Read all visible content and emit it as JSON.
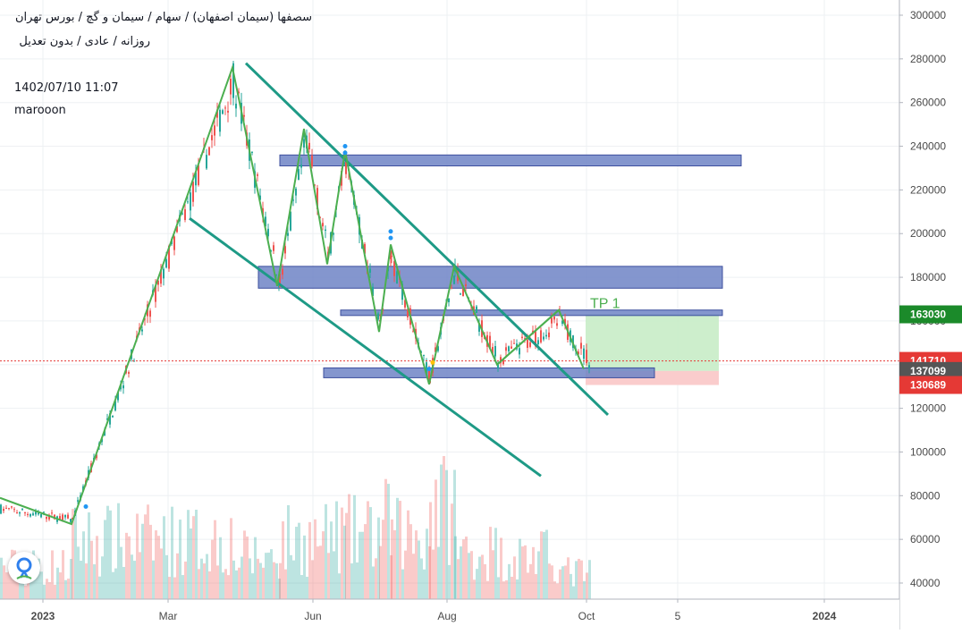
{
  "header": {
    "title": "سصفها (سیمان اصفهان) / سهام / سیمان و گچ / بورس تهران",
    "subtitle": "روزانه / عادی / بدون تعدیل",
    "datetime": "1402/07/10 11:07",
    "author": "marooon"
  },
  "colors": {
    "up": "#26a69a",
    "down": "#ef5350",
    "zigzag": "#4caf50",
    "channel": "#1e9a86",
    "zone_fill": "#6f84c6",
    "zone_border": "#3d4f9e",
    "tp_fill": "#c8ecc6",
    "sl_fill": "#f9c6c6",
    "grid": "#eef0f3"
  },
  "chart_data": {
    "type": "candlestick",
    "y_ticks": [
      40000,
      60000,
      80000,
      100000,
      120000,
      140000,
      160000,
      180000,
      200000,
      220000,
      240000,
      260000,
      280000,
      300000
    ],
    "x_ticks": [
      "2023",
      "Mar",
      "Jun",
      "Aug",
      "Oct",
      "5",
      "2024"
    ],
    "ylim": [
      35000,
      305000
    ],
    "price_labels": [
      {
        "value": 163030,
        "text": "163030",
        "color": "#1b8a2a"
      },
      {
        "value": 141710,
        "text": "141710",
        "color": "#e53935"
      },
      {
        "value": 137099,
        "text": "137099",
        "color": "#555555"
      },
      {
        "value": 130689,
        "text": "130689",
        "color": "#e53935"
      }
    ],
    "current_price": 141710,
    "annotations": [
      {
        "text": "TP  1",
        "value": 166000
      }
    ],
    "zones": [
      {
        "name": "resistance-1",
        "from": 231000,
        "to": 236000
      },
      {
        "name": "resistance-2",
        "from": 175000,
        "to": 185000
      },
      {
        "name": "resistance-3",
        "from": 162500,
        "to": 165000
      },
      {
        "name": "support",
        "from": 134000,
        "to": 138500
      }
    ],
    "zigzag": [
      [
        0,
        79000
      ],
      [
        80,
        67000
      ],
      [
        260,
        276000
      ],
      [
        310,
        176000
      ],
      [
        340,
        248000
      ],
      [
        366,
        186000
      ],
      [
        386,
        238000
      ],
      [
        424,
        155000
      ],
      [
        437,
        195000
      ],
      [
        480,
        131000
      ],
      [
        508,
        185000
      ],
      [
        556,
        140000
      ],
      [
        625,
        165000
      ],
      [
        653,
        138000
      ]
    ],
    "channel_upper": [
      [
        275,
        278000
      ],
      [
        680,
        117000
      ]
    ],
    "channel_lower": [
      [
        212,
        207000
      ],
      [
        605,
        89000
      ]
    ],
    "segments": [
      {
        "from": 0,
        "to": 80,
        "start": 74000,
        "end": 69000,
        "vol": 30
      },
      {
        "from": 80,
        "to": 260,
        "start": 69000,
        "end": 270000,
        "vol": 55
      },
      {
        "from": 260,
        "to": 312,
        "start": 270000,
        "end": 178000,
        "vol": 40
      },
      {
        "from": 312,
        "to": 342,
        "start": 178000,
        "end": 243000,
        "vol": 55
      },
      {
        "from": 342,
        "to": 366,
        "start": 243000,
        "end": 190000,
        "vol": 55
      },
      {
        "from": 366,
        "to": 386,
        "start": 190000,
        "end": 233000,
        "vol": 60
      },
      {
        "from": 386,
        "to": 424,
        "start": 233000,
        "end": 158000,
        "vol": 60
      },
      {
        "from": 424,
        "to": 437,
        "start": 158000,
        "end": 190000,
        "vol": 70
      },
      {
        "from": 437,
        "to": 480,
        "start": 190000,
        "end": 134000,
        "vol": 60
      },
      {
        "from": 480,
        "to": 508,
        "start": 134000,
        "end": 182000,
        "vol": 90
      },
      {
        "from": 508,
        "to": 556,
        "start": 182000,
        "end": 142000,
        "vol": 45
      },
      {
        "from": 556,
        "to": 625,
        "start": 142000,
        "end": 160000,
        "vol": 40
      },
      {
        "from": 625,
        "to": 660,
        "start": 160000,
        "end": 141000,
        "vol": 25
      }
    ]
  }
}
